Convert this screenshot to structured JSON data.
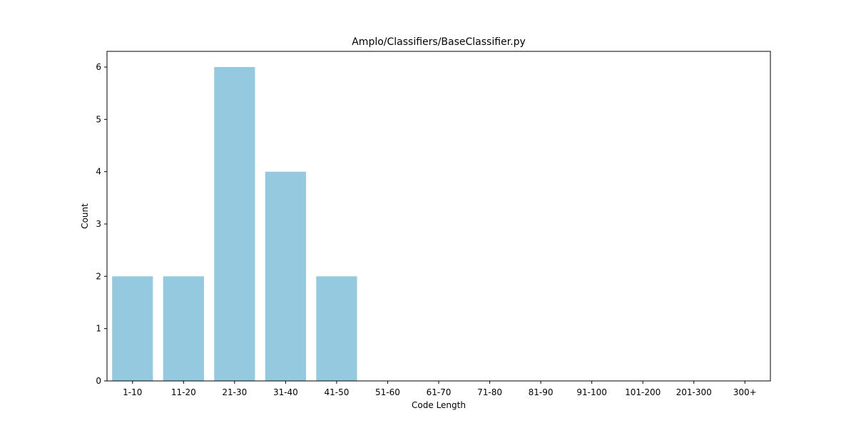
{
  "chart_data": {
    "type": "bar",
    "title": "Amplo/Classifiers/BaseClassifier.py",
    "xlabel": "Code Length",
    "ylabel": "Count",
    "categories": [
      "1-10",
      "11-20",
      "21-30",
      "31-40",
      "41-50",
      "51-60",
      "61-70",
      "71-80",
      "81-90",
      "91-100",
      "101-200",
      "201-300",
      "300+"
    ],
    "values": [
      2,
      2,
      6,
      4,
      2,
      0,
      0,
      0,
      0,
      0,
      0,
      0,
      0
    ],
    "ylim": [
      0,
      6.3
    ],
    "yticks": [
      0,
      1,
      2,
      3,
      4,
      5,
      6
    ],
    "grid": false,
    "bar_color": "#95c9df"
  }
}
